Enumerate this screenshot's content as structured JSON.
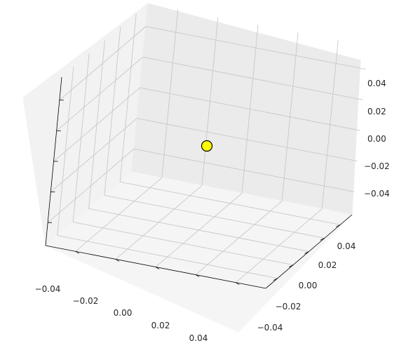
{
  "chart_data": {
    "type": "scatter",
    "projection": "3d",
    "grid": true,
    "title": "",
    "xlabel": "",
    "ylabel": "",
    "zlabel": "",
    "xlim": [
      -0.055,
      0.055
    ],
    "ylim": [
      -0.055,
      0.055
    ],
    "zlim": [
      -0.055,
      0.055
    ],
    "x_ticks": [
      "−0.04",
      "−0.02",
      "0.00",
      "0.02",
      "0.04"
    ],
    "y_ticks": [
      "−0.04",
      "−0.02",
      "0.00",
      "0.02",
      "0.04"
    ],
    "z_ticks": [
      "−0.04",
      "−0.02",
      "0.00",
      "0.02",
      "0.04"
    ],
    "tick_values": [
      -0.04,
      -0.02,
      0.0,
      0.02,
      0.04
    ],
    "series": [
      {
        "points": [
          {
            "x": 0.0,
            "y": 0.0,
            "z": 0.0
          }
        ],
        "color": "#ffff00",
        "edgecolor": "#000000"
      }
    ]
  }
}
